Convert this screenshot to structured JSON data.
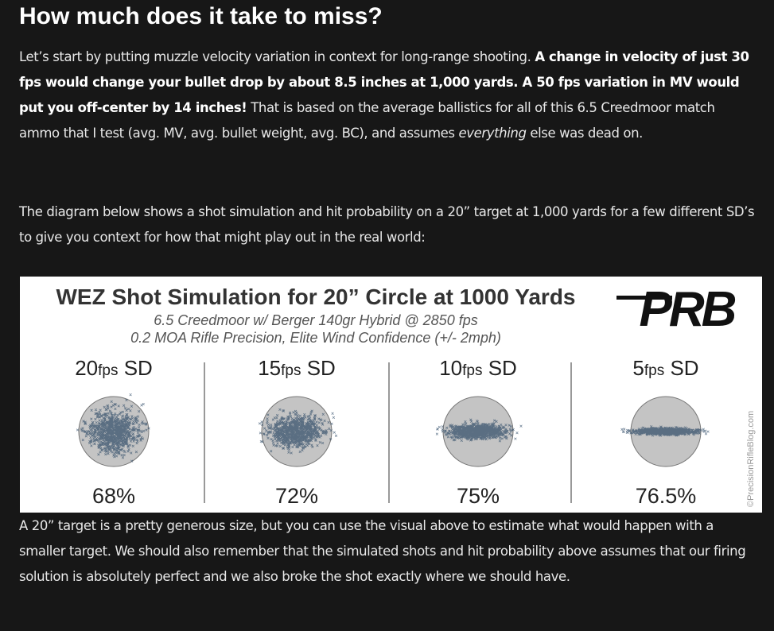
{
  "heading": "How much does it take to miss?",
  "paragraphs": [
    [
      {
        "text": "Let’s start by putting muzzle velocity variation in context for long-range shooting. ",
        "style": "normal"
      },
      {
        "text": "A change in velocity of just 30 fps would change your bullet drop by about 8.5 inches at 1,000 yards. A 50 fps variation in MV would put you off-center by 14 inches!",
        "style": "bold"
      },
      {
        "text": " That is based on the average ballistics for all of this 6.5 Creedmoor match ammo that I test (avg. MV, avg. bullet weight, avg. BC), and assumes ",
        "style": "normal"
      },
      {
        "text": "everything",
        "style": "italic"
      },
      {
        "text": " else was dead on.",
        "style": "normal"
      }
    ],
    [
      {
        "text": "The diagram below shows a shot simulation and hit probability on a 20” target at 1,000 yards for a few different SD’s to give you context for how that might play out in the real world:",
        "style": "normal"
      }
    ]
  ],
  "figure": {
    "title": "WEZ Shot Simulation for 20” Circle at 1000 Yards",
    "subtitle_lines": [
      "6.5 Creedmoor w/ Berger 140gr Hybrid @ 2850 fps",
      "0.2 MOA Rifle Precision, Elite Wind Confidence (+/- 2mph)"
    ],
    "logo": "PRB",
    "watermark": "©PrecisionRifleBlog.com",
    "panels": [
      {
        "number": "20",
        "unit": "fps",
        "suffix": " SD",
        "hit": "68%"
      },
      {
        "number": "15",
        "unit": "fps",
        "suffix": " SD",
        "hit": "72%"
      },
      {
        "number": "10",
        "unit": "fps",
        "suffix": " SD",
        "hit": "75%"
      },
      {
        "number": "5",
        "unit": "fps",
        "suffix": " SD",
        "hit": "76.5%"
      }
    ]
  },
  "after_paragraph": "A 20” target is a pretty generous size, but you can use the visual above to estimate what would happen with a smaller target. We should also remember that the simulated shots and hit probability above assumes that our firing solution is absolutely perfect and we also broke the shot exactly where we should have."
}
